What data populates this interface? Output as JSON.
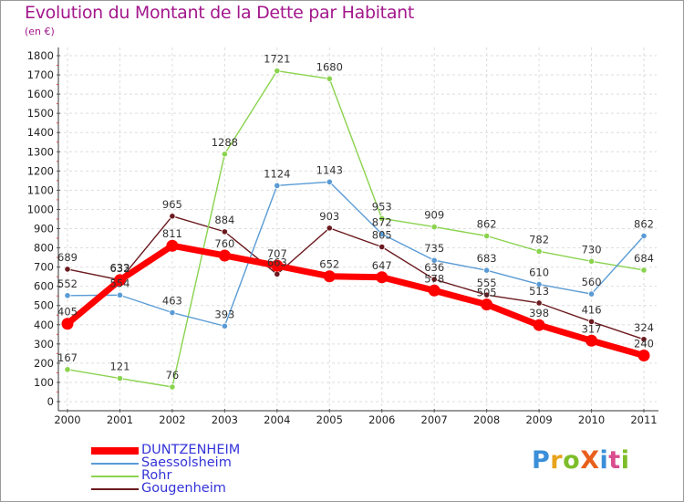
{
  "title": "Evolution du Montant de la Dette par Habitant",
  "subtitle": "(en €)",
  "logo": {
    "text": "ProXiti",
    "colors": [
      "#3b8fd9",
      "#e8a31c",
      "#7dbd2a",
      "#e8601c",
      "#3b8fd9",
      "#d94e8f",
      "#7dbd2a"
    ]
  },
  "chart_data": {
    "type": "line",
    "title": "Evolution du Montant de la Dette par Habitant",
    "ylabel": "(en €)",
    "x": [
      "2000",
      "2001",
      "2002",
      "2003",
      "2004",
      "2005",
      "2006",
      "2007",
      "2008",
      "2009",
      "2010",
      "2011"
    ],
    "ylim": [
      0,
      1800
    ],
    "yticks": [
      0,
      100,
      200,
      300,
      400,
      500,
      600,
      700,
      800,
      900,
      1000,
      1100,
      1200,
      1300,
      1400,
      1500,
      1600,
      1700,
      1800
    ],
    "grid": true,
    "legend": "bottom-left",
    "series": [
      {
        "name": "Gougenheim",
        "color": "#6b1a1f",
        "values": [
          689,
          633,
          965,
          884,
          663,
          903,
          805,
          636,
          555,
          513,
          416,
          324
        ],
        "labels": [
          "689",
          "633",
          "965",
          "884",
          "663",
          "903",
          "805",
          "636",
          "555",
          "513",
          "416",
          "324"
        ]
      },
      {
        "name": "Rohr",
        "color": "#8ad34e",
        "values": [
          167,
          121,
          76,
          1288,
          1721,
          1680,
          953,
          909,
          862,
          782,
          730,
          684
        ],
        "labels": [
          "167",
          "121",
          "76",
          "1288",
          "1721",
          "1680",
          "953",
          "909",
          "862",
          "782",
          "730",
          "684"
        ]
      },
      {
        "name": "Saessolsheim",
        "color": "#5a9bd5",
        "values": [
          552,
          554,
          463,
          393,
          1124,
          1143,
          872,
          735,
          683,
          610,
          560,
          862
        ],
        "labels": [
          "552",
          "554",
          "463",
          "393",
          "1124",
          "1143",
          "872",
          "735",
          "683",
          "610",
          "560",
          "862"
        ]
      },
      {
        "name": "DUNTZENHEIM",
        "color": "#ff0000",
        "values": [
          405,
          632,
          811,
          760,
          707,
          652,
          647,
          578,
          505,
          398,
          317,
          240
        ],
        "labels": [
          "405",
          "632",
          "811",
          "760",
          "707",
          "652",
          "647",
          "578",
          "505",
          "398",
          "317",
          "240"
        ]
      }
    ],
    "legend_order": [
      "DUNTZENHEIM",
      "Saessolsheim",
      "Rohr",
      "Gougenheim"
    ]
  }
}
